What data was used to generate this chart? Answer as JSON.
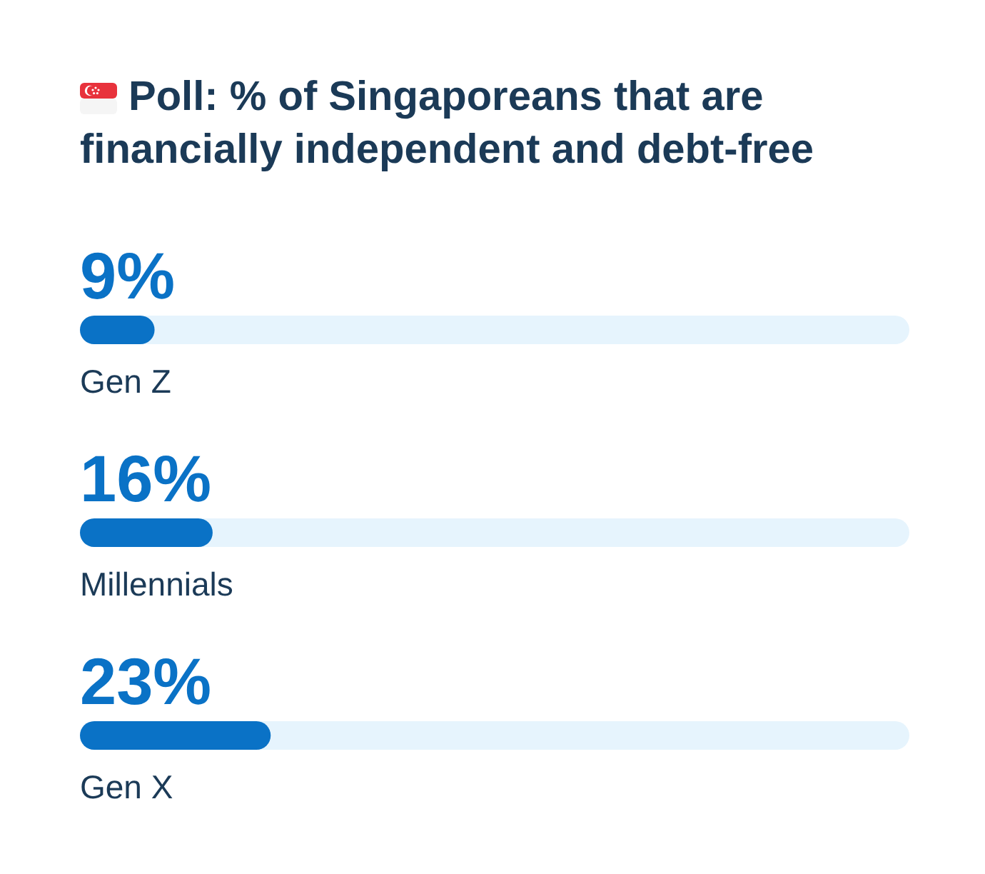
{
  "chart_data": {
    "type": "bar",
    "orientation": "horizontal",
    "title": "Poll: % of Singaporeans that are financially independent and debt-free",
    "categories": [
      "Gen Z",
      "Millennials",
      "Gen X"
    ],
    "values": [
      9,
      16,
      23
    ],
    "value_labels": [
      "9%",
      "16%",
      "23%"
    ],
    "color": "#0a72c6",
    "xlim": [
      0,
      100
    ],
    "tick_labels": false,
    "grid": false,
    "legend": false
  }
}
